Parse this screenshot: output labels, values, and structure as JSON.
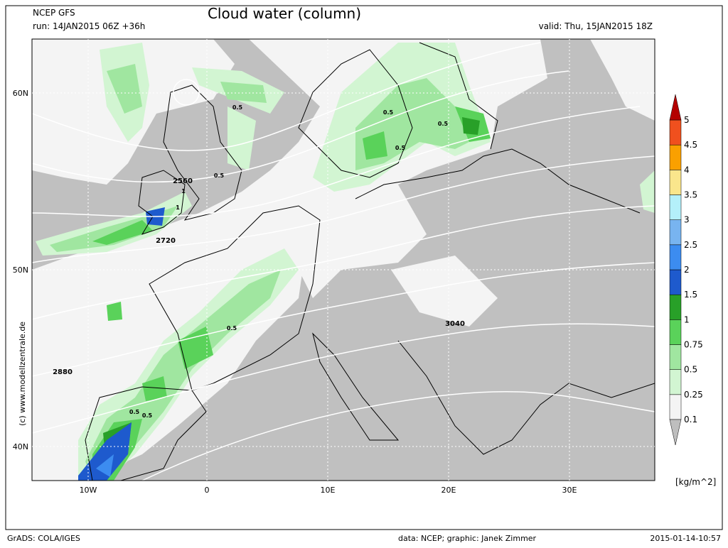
{
  "header": {
    "model": "NCEP GFS",
    "run": "run: 14JAN2015 06Z +36h",
    "title": "Cloud water (column)",
    "valid": "valid: Thu, 15JAN2015 18Z"
  },
  "map": {
    "lat_labels": [
      "60N",
      "50N",
      "40N"
    ],
    "lon_labels": [
      "10W",
      "0",
      "10E",
      "20E",
      "30E"
    ],
    "contour_labels": [
      "2560",
      "2720",
      "2880",
      "3040"
    ],
    "cloud_labels": [
      "0.5",
      "0.5",
      "0.5",
      "0.5",
      "0.5",
      "0.5",
      "0.5",
      "0.5",
      "1",
      "1"
    ],
    "credit": "(c)  www.modellzentrale.de"
  },
  "colorbar": {
    "levels": [
      0.1,
      0.25,
      0.5,
      0.75,
      1,
      1.5,
      2,
      2.5,
      3,
      3.5,
      4,
      4.5,
      5
    ],
    "colors": [
      "#f4f4f4",
      "#d2f5d2",
      "#a0e6a0",
      "#5ad25a",
      "#28a028",
      "#1e5acd",
      "#3c8cf0",
      "#78b4f0",
      "#b4f0fa",
      "#fae68c",
      "#faa000",
      "#f0501e"
    ],
    "under_color": "#bebebe",
    "over_color": "#b40000",
    "unit": "[kg/m^2]"
  },
  "footer": {
    "software": "GrADS: COLA/IGES",
    "source": "data: NCEP; graphic: Janek Zimmer",
    "timestamp": "2015-01-14-10:57"
  }
}
